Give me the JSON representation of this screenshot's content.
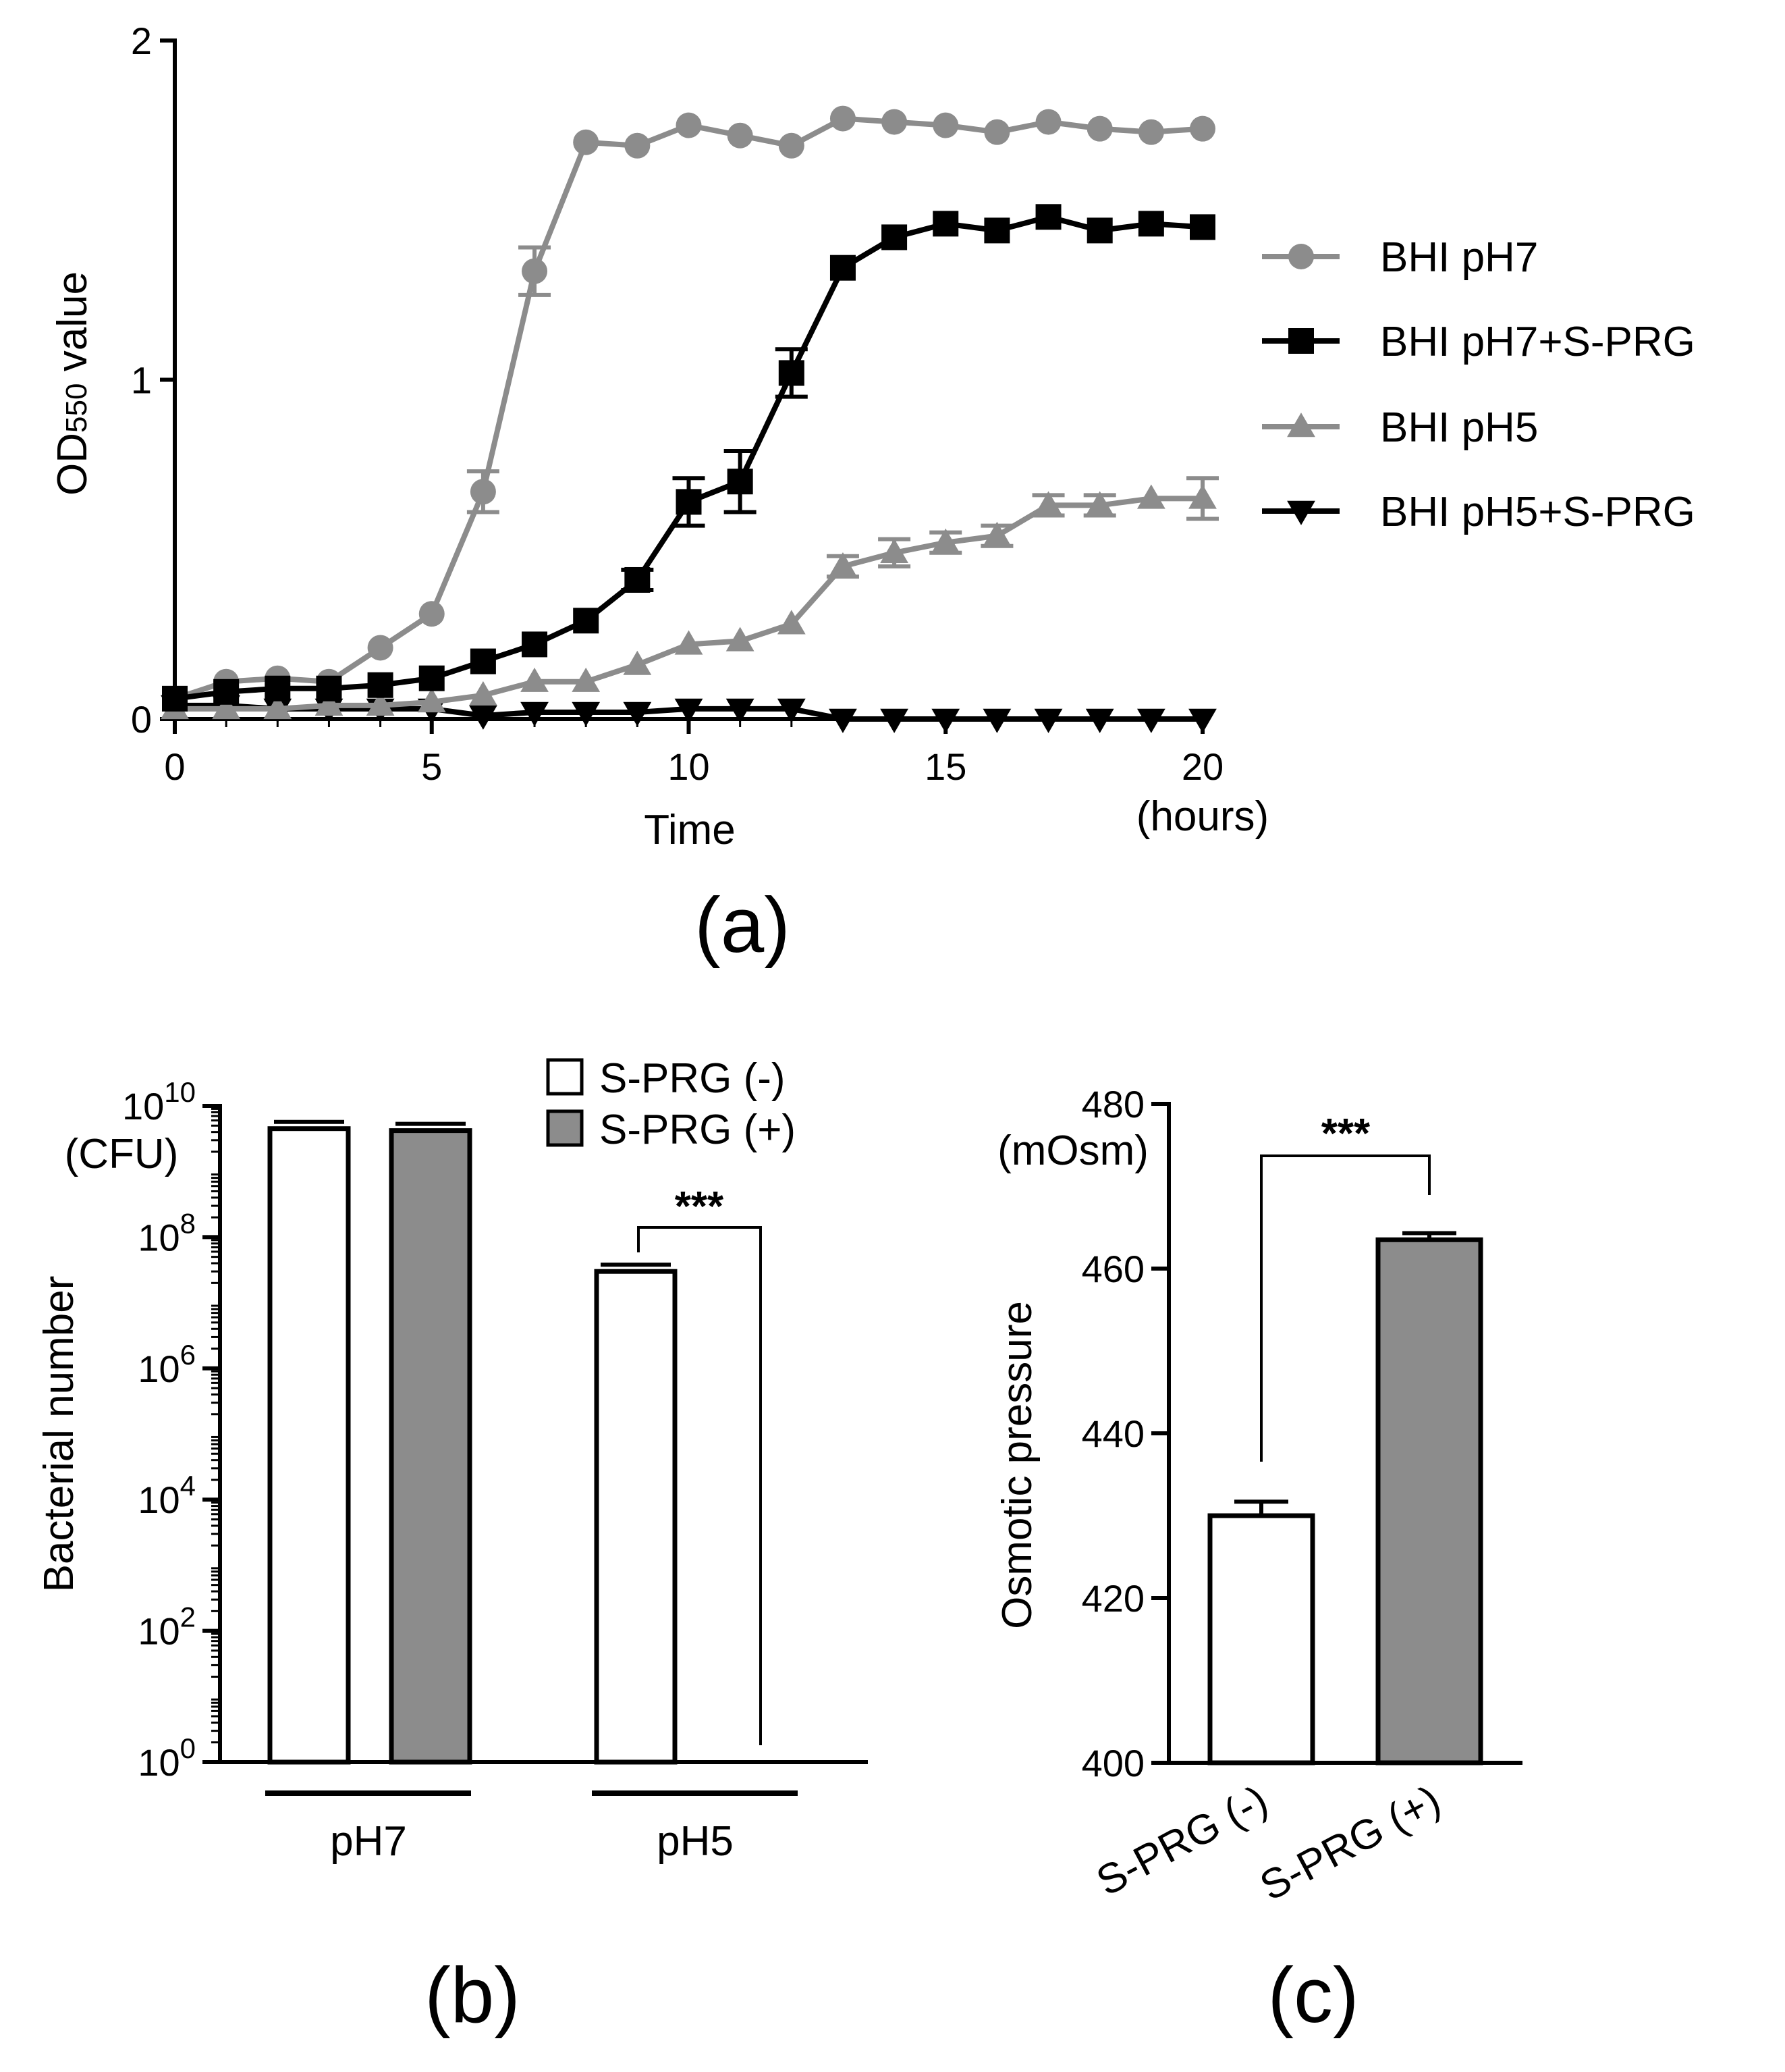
{
  "chart_data": [
    {
      "panel_label": "(a)",
      "type": "line",
      "xlabel": "Time",
      "xunit": "(hours)",
      "ylabel_main": "OD",
      "ylabel_sub": "550",
      "ylabel_rest": " value",
      "xlim": [
        0,
        20
      ],
      "ylim": [
        0,
        2
      ],
      "xticks": [
        "0",
        "5",
        "10",
        "15",
        "20"
      ],
      "yticks": [
        "0",
        "1",
        "2"
      ],
      "legend_position": "right",
      "x": [
        0,
        1,
        2,
        3,
        4,
        5,
        6,
        7,
        8,
        9,
        10,
        11,
        12,
        13,
        14,
        15,
        16,
        17,
        18,
        19,
        20
      ],
      "series": [
        {
          "name": "BHI pH7",
          "marker": "circle",
          "color": "#8c8c8c",
          "values": [
            0.06,
            0.11,
            0.12,
            0.11,
            0.21,
            0.31,
            0.67,
            1.32,
            1.7,
            1.69,
            1.75,
            1.72,
            1.69,
            1.77,
            1.76,
            1.75,
            1.73,
            1.76,
            1.74,
            1.73,
            1.74
          ],
          "errors": [
            0,
            0,
            0,
            0,
            0,
            0,
            0.06,
            0.07,
            0,
            0,
            0,
            0,
            0,
            0,
            0,
            0,
            0,
            0,
            0,
            0,
            0
          ]
        },
        {
          "name": "BHI pH7+S-PRG",
          "marker": "square",
          "color": "#000000",
          "values": [
            0.06,
            0.08,
            0.09,
            0.09,
            0.1,
            0.12,
            0.17,
            0.22,
            0.29,
            0.41,
            0.64,
            0.7,
            1.02,
            1.33,
            1.42,
            1.46,
            1.44,
            1.48,
            1.44,
            1.46,
            1.45
          ],
          "errors": [
            0,
            0,
            0,
            0,
            0,
            0,
            0,
            0,
            0,
            0.03,
            0.07,
            0.09,
            0.07,
            0,
            0,
            0,
            0,
            0,
            0,
            0,
            0
          ]
        },
        {
          "name": "BHI pH5",
          "marker": "triangle-up",
          "color": "#8c8c8c",
          "values": [
            0.03,
            0.03,
            0.03,
            0.04,
            0.04,
            0.05,
            0.07,
            0.11,
            0.11,
            0.16,
            0.22,
            0.23,
            0.28,
            0.45,
            0.49,
            0.52,
            0.54,
            0.63,
            0.63,
            0.65,
            0.65
          ],
          "errors": [
            0,
            0,
            0,
            0,
            0,
            0,
            0,
            0,
            0,
            0,
            0,
            0,
            0,
            0.03,
            0.04,
            0.03,
            0.03,
            0.03,
            0.03,
            0,
            0.06
          ]
        },
        {
          "name": "BHI pH5+S-PRG",
          "marker": "triangle-down",
          "color": "#000000",
          "values": [
            0.04,
            0.04,
            0.03,
            0.03,
            0.03,
            0.03,
            0.01,
            0.02,
            0.02,
            0.02,
            0.03,
            0.03,
            0.03,
            0.0,
            0.0,
            0.0,
            0.0,
            0.0,
            0.0,
            0.0,
            0.0
          ],
          "errors": [
            0,
            0,
            0,
            0,
            0,
            0,
            0,
            0,
            0,
            0,
            0,
            0,
            0,
            0,
            0,
            0,
            0,
            0,
            0,
            0,
            0
          ]
        }
      ]
    },
    {
      "panel_label": "(b)",
      "type": "bar",
      "ylabel": "Bacterial number",
      "yunit": "(CFU)",
      "yscale": "log",
      "ylim_exponent": [
        0,
        10
      ],
      "ytick_base": "10",
      "ytick_exponents": [
        "0",
        "2",
        "4",
        "6",
        "8",
        "10"
      ],
      "categories": [
        "pH7",
        "pH5"
      ],
      "legend_position": "top",
      "series": [
        {
          "name": "S-PRG (-)",
          "color": "#ffffff",
          "values": [
            4500000000.0,
            30000000.0
          ]
        },
        {
          "name": "S-PRG (+)",
          "color": "#8c8c8c",
          "values": [
            4200000000.0,
            0
          ]
        }
      ],
      "significance": "***"
    },
    {
      "panel_label": "(c)",
      "type": "bar",
      "ylabel": "Osmotic pressure",
      "yunit": "(mOsm)",
      "ylim": [
        400,
        480
      ],
      "yticks": [
        "400",
        "420",
        "440",
        "460",
        "480"
      ],
      "categories": [
        "S-PRG (-)",
        "S-PRG (+)"
      ],
      "values": [
        430,
        463.5
      ],
      "errors": [
        1.7,
        0.8
      ],
      "colors": [
        "#ffffff",
        "#8c8c8c"
      ],
      "significance": "***"
    }
  ]
}
